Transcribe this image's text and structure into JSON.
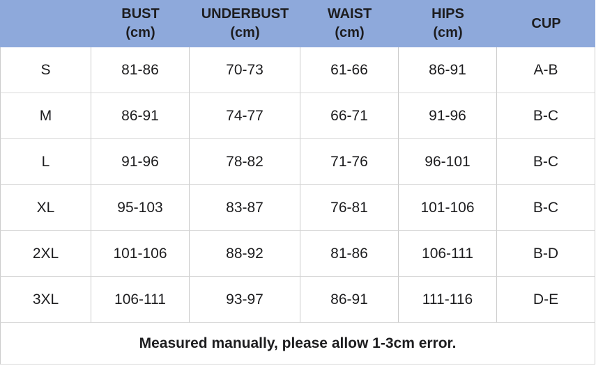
{
  "colors": {
    "header_bg": "#8EA9DB",
    "grid_line": "#cccccc",
    "grid_line_h": "#d9d9d9",
    "text": "#1d1d1f"
  },
  "table": {
    "header": [
      {
        "name": "",
        "unit": ""
      },
      {
        "name": "BUST",
        "unit": "(cm)"
      },
      {
        "name": "UNDERBUST",
        "unit": "(cm)"
      },
      {
        "name": "WAIST",
        "unit": "(cm)"
      },
      {
        "name": "HIPS",
        "unit": "(cm)"
      },
      {
        "name": "CUP",
        "unit": ""
      }
    ]
  },
  "chart_data": {
    "type": "table",
    "columns": [
      "",
      "BUST (cm)",
      "UNDERBUST (cm)",
      "WAIST (cm)",
      "HIPS (cm)",
      "CUP"
    ],
    "rows": [
      [
        "S",
        "81-86",
        "70-73",
        "61-66",
        "86-91",
        "A-B"
      ],
      [
        "M",
        "86-91",
        "74-77",
        "66-71",
        "91-96",
        "B-C"
      ],
      [
        "L",
        "91-96",
        "78-82",
        "71-76",
        "96-101",
        "B-C"
      ],
      [
        "XL",
        "95-103",
        "83-87",
        "76-81",
        "101-106",
        "B-C"
      ],
      [
        "2XL",
        "101-106",
        "88-92",
        "81-86",
        "106-111",
        "B-D"
      ],
      [
        "3XL",
        "106-111",
        "93-97",
        "86-91",
        "111-116",
        "D-E"
      ]
    ],
    "footer": "Measured manually, please allow 1-3cm error."
  }
}
